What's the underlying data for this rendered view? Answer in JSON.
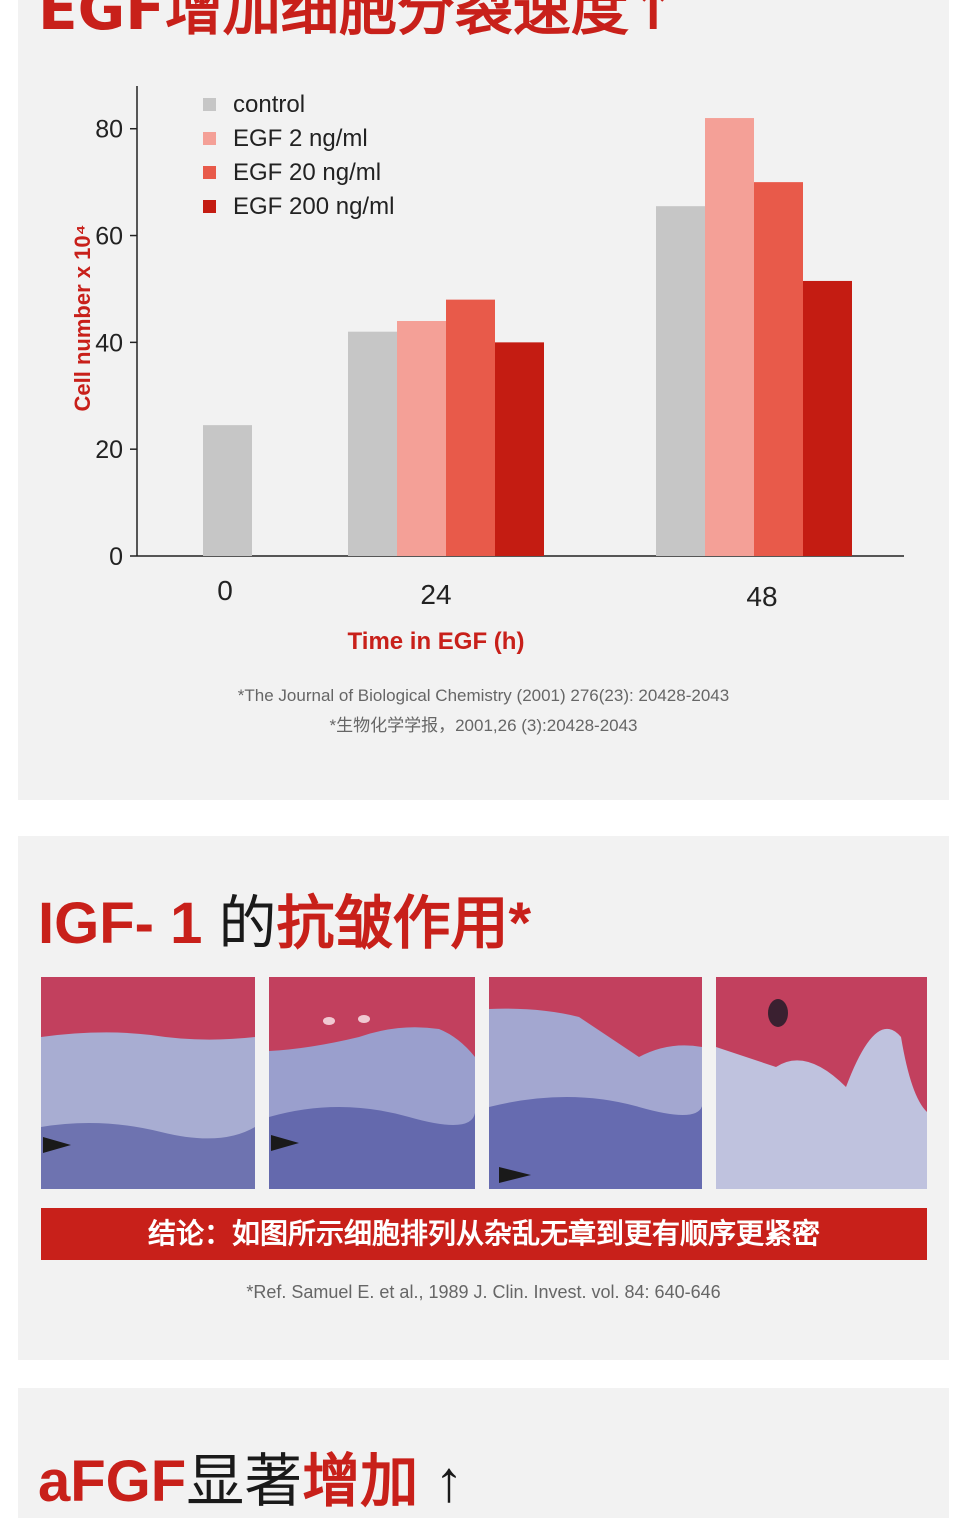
{
  "top_banner": {
    "title": "EGF增加细胞分裂速度↑"
  },
  "chart_data": {
    "type": "bar",
    "categories": [
      "0",
      "24",
      "48"
    ],
    "series": [
      {
        "name": "control",
        "color": "#c6c6c6",
        "values": [
          24.5,
          42,
          65.5
        ]
      },
      {
        "name": "EGF 2 ng/ml",
        "color": "#f4a097",
        "values": [
          null,
          44,
          82
        ]
      },
      {
        "name": "EGF 20 ng/ml",
        "color": "#e85a4a",
        "values": [
          null,
          48,
          70
        ]
      },
      {
        "name": "EGF 200 ng/ml",
        "color": "#c41c12",
        "values": [
          null,
          40,
          51.5
        ]
      }
    ],
    "xlabel": "Time in EGF (h)",
    "ylabel": "Cell number x 10⁴",
    "ylim": [
      0,
      88
    ],
    "yticks": [
      0,
      20,
      40,
      60,
      80
    ],
    "legend_position": "top-left",
    "grid": false
  },
  "citation": {
    "line1": "*The Journal of Biological Chemistry (2001) 276(23): 20428-2043",
    "line2": "*生物化学学报，2001,26 (3):20428-2043"
  },
  "igf_section": {
    "title_red_1": "IGF- 1",
    "title_black": "的",
    "title_red_2": "抗皱作用*",
    "conclusion": "结论：如图所示细胞排列从杂乱无章到更有顺序更紧密",
    "reference": "*Ref. Samuel E. et al., 1989 J. Clin. Invest. vol. 84: 640-646",
    "colors": {
      "epidermis": "#c2405e",
      "dermis": "#8f93c4",
      "arrow": "#1a1a1a"
    }
  },
  "afgf_section": {
    "title_red_1": "aFGF",
    "title_black": "显著",
    "title_red_2": "增加",
    "arrow": "↑"
  }
}
